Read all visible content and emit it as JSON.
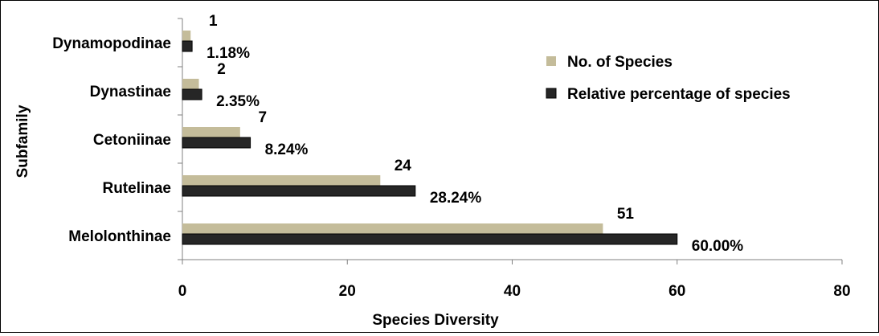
{
  "chart_data": {
    "type": "bar",
    "orientation": "horizontal",
    "categories": [
      "Melolonthinae",
      "Rutelinae",
      "Cetoniinae",
      "Dynastinae",
      "Dynamopodinae"
    ],
    "series": [
      {
        "name": "No. of Species",
        "values": [
          51,
          24,
          7,
          2,
          1
        ],
        "labels": [
          "51",
          "24",
          "7",
          "2",
          "1"
        ],
        "color": "#c4bc9a"
      },
      {
        "name": "Relative percentage of species",
        "values": [
          60.0,
          28.24,
          8.24,
          2.35,
          1.18
        ],
        "labels": [
          "60.00%",
          "28.24%",
          "8.24%",
          "2.35%",
          "1.18%"
        ],
        "color": "#262626"
      }
    ],
    "xlabel": "Species Diversity",
    "ylabel": "Subfamily",
    "xlim": [
      0,
      80
    ],
    "x_ticks": [
      "0",
      "20",
      "40",
      "60",
      "80"
    ],
    "grid": false,
    "legend_position": "right"
  }
}
